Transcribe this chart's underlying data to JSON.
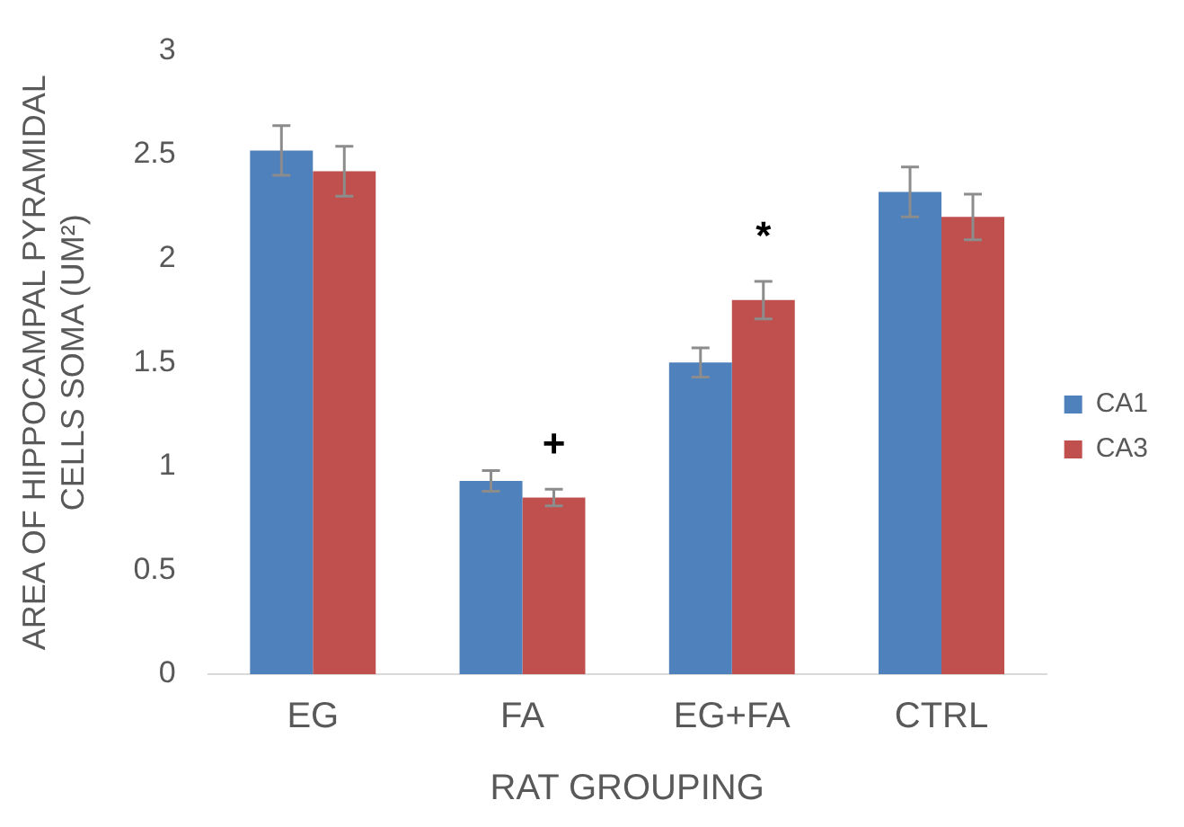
{
  "chart_data": {
    "type": "bar",
    "xlabel": "RAT GROUPING",
    "ylabel": "AREA OF HIPPOCAMPAL PYRAMIDAL CELLS SOMA (UM²)",
    "categories": [
      "EG",
      "FA",
      "EG+FA",
      "CTRL"
    ],
    "series": [
      {
        "name": "CA1",
        "color": "#4f81bd",
        "values": [
          2.52,
          0.93,
          1.5,
          2.32
        ],
        "errors": [
          0.12,
          0.05,
          0.07,
          0.12
        ]
      },
      {
        "name": "CA3",
        "color": "#c0504d",
        "values": [
          2.42,
          0.85,
          1.8,
          2.2
        ],
        "errors": [
          0.12,
          0.04,
          0.09,
          0.11
        ]
      }
    ],
    "ylim": [
      0,
      3
    ],
    "yticks": [
      0,
      0.5,
      1,
      1.5,
      2,
      2.5,
      3
    ],
    "grid": false,
    "legend": "right",
    "annotations": [
      "+",
      "*"
    ]
  }
}
